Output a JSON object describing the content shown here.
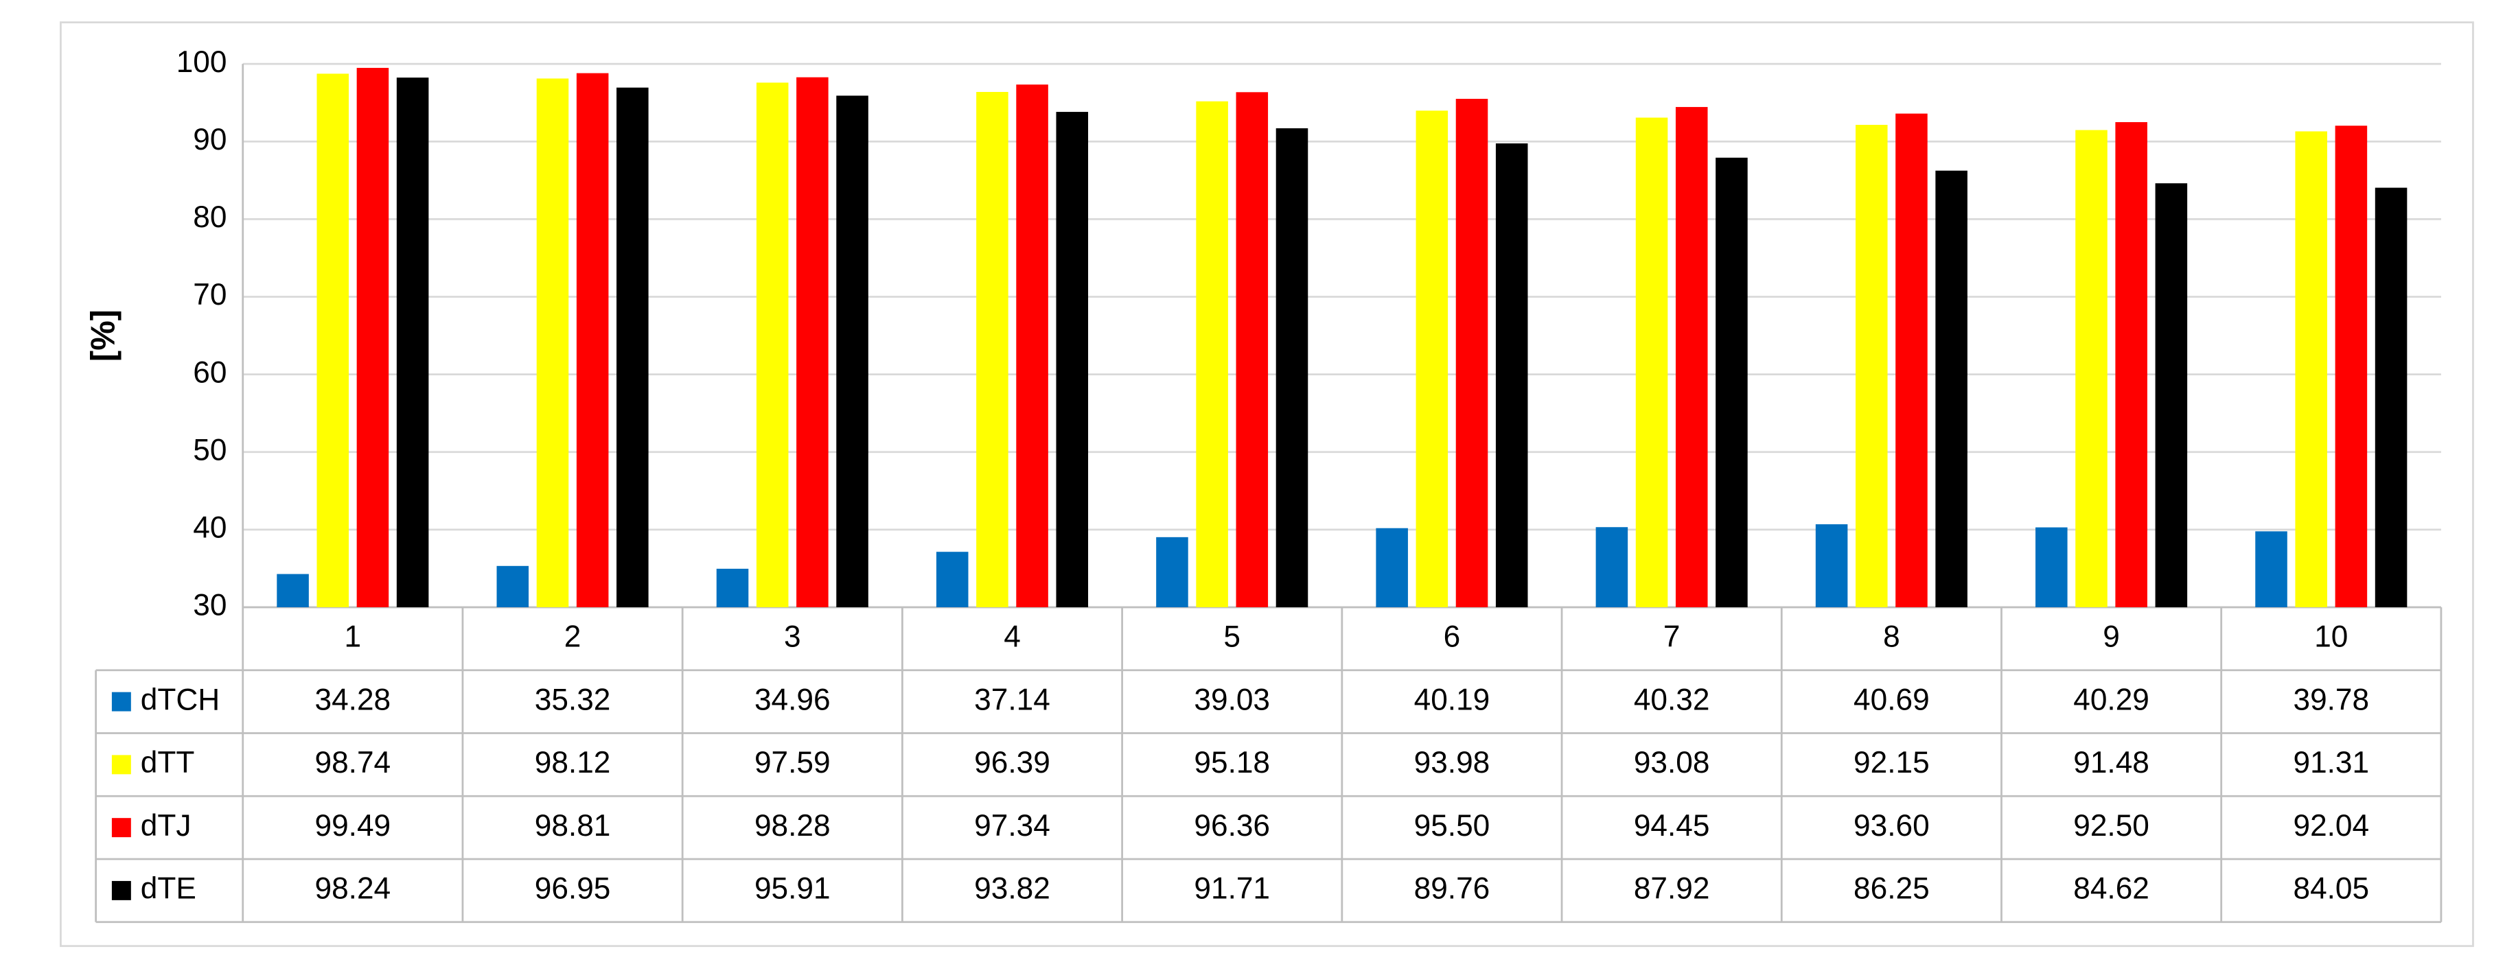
{
  "chart_data": {
    "type": "bar",
    "ylabel": "[%]",
    "categories": [
      "1",
      "2",
      "3",
      "4",
      "5",
      "6",
      "7",
      "8",
      "9",
      "10"
    ],
    "series": [
      {
        "name": "dTCH",
        "color": "#0070c0",
        "values": [
          34.28,
          35.32,
          34.96,
          37.14,
          39.03,
          40.19,
          40.32,
          40.69,
          40.29,
          39.78
        ],
        "value_labels": [
          "34.28",
          "35.32",
          "34.96",
          "37.14",
          "39.03",
          "40.19",
          "40.32",
          "40.69",
          "40.29",
          "39.78"
        ]
      },
      {
        "name": "dTT",
        "color": "#ffff00",
        "values": [
          98.74,
          98.12,
          97.59,
          96.39,
          95.18,
          93.98,
          93.08,
          92.15,
          91.48,
          91.31
        ],
        "value_labels": [
          "98.74",
          "98.12",
          "97.59",
          "96.39",
          "95.18",
          "93.98",
          "93.08",
          "92.15",
          "91.48",
          "91.31"
        ]
      },
      {
        "name": "dTJ",
        "color": "#ff0000",
        "values": [
          99.49,
          98.81,
          98.28,
          97.34,
          96.36,
          95.5,
          94.45,
          93.6,
          92.5,
          92.04
        ],
        "value_labels": [
          "99.49",
          "98.81",
          "98.28",
          "97.34",
          "96.36",
          "95.50",
          "94.45",
          "93.60",
          "92.50",
          "92.04"
        ]
      },
      {
        "name": "dTE",
        "color": "#000000",
        "values": [
          98.24,
          96.95,
          95.91,
          93.82,
          91.71,
          89.76,
          87.92,
          86.25,
          84.62,
          84.05
        ],
        "value_labels": [
          "98.24",
          "96.95",
          "95.91",
          "93.82",
          "91.71",
          "89.76",
          "87.92",
          "86.25",
          "84.62",
          "84.05"
        ]
      }
    ],
    "ylim": [
      30,
      100
    ],
    "yticks": [
      30,
      40,
      50,
      60,
      70,
      80,
      90,
      100
    ],
    "grid": true
  }
}
